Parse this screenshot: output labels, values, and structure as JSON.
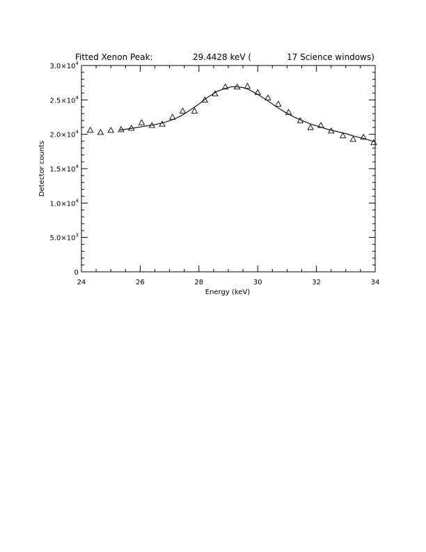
{
  "chart_data": {
    "type": "scatter",
    "title_parts": {
      "label": "Fitted Xenon Peak:",
      "value": "29.4428 keV (",
      "windows": "17 Science windows)"
    },
    "xlabel": "Energy (keV)",
    "ylabel": "Detector counts",
    "xlim": [
      24,
      34
    ],
    "ylim": [
      0,
      30000
    ],
    "x_ticks": [
      24,
      26,
      28,
      30,
      32,
      34
    ],
    "x_tick_labels": [
      "24",
      "26",
      "28",
      "30",
      "32",
      "34"
    ],
    "y_ticks": [
      0,
      5000,
      10000,
      15000,
      20000,
      25000,
      30000
    ],
    "y_tick_mantissas": [
      "0",
      "5.0×10",
      "1.0×10",
      "1.5×10",
      "2.0×10",
      "2.5×10",
      "3.0×10"
    ],
    "y_tick_exponents": [
      "",
      "3",
      "4",
      "4",
      "4",
      "4",
      "4"
    ],
    "grid": false,
    "series": [
      {
        "marker": "triangle",
        "x": [
          24.3,
          24.65,
          25.0,
          25.35,
          25.7,
          26.05,
          26.4,
          26.75,
          27.1,
          27.45,
          27.85,
          28.2,
          28.55,
          28.9,
          29.3,
          29.65,
          30.0,
          30.35,
          30.7,
          31.05,
          31.45,
          31.8,
          32.15,
          32.5,
          32.9,
          33.25,
          33.6,
          33.95
        ],
        "y": [
          20600,
          20300,
          20600,
          20700,
          20900,
          21700,
          21300,
          21500,
          22500,
          23400,
          23400,
          25000,
          25900,
          26900,
          26900,
          27000,
          26100,
          25300,
          24400,
          23200,
          22000,
          21000,
          21300,
          20500,
          19800,
          19300,
          19600,
          18800
        ]
      },
      {
        "style": "line",
        "x": [
          25.3,
          25.6,
          25.9,
          26.2,
          26.5,
          26.8,
          27.1,
          27.4,
          27.7,
          28.0,
          28.3,
          28.6,
          28.9,
          29.1,
          29.3,
          29.5,
          29.7,
          30.0,
          30.3,
          30.6,
          30.9,
          31.2,
          31.5,
          31.8,
          32.1,
          32.4,
          32.7,
          33.0,
          33.3,
          33.6,
          34.0
        ],
        "y": [
          20600,
          20800,
          21000,
          21200,
          21400,
          21700,
          22100,
          22700,
          23500,
          24400,
          25400,
          26200,
          26700,
          26900,
          26900,
          26800,
          26500,
          25800,
          25000,
          24100,
          23300,
          22600,
          22000,
          21500,
          21100,
          20700,
          20400,
          20100,
          19700,
          19400,
          18900
        ]
      }
    ]
  }
}
